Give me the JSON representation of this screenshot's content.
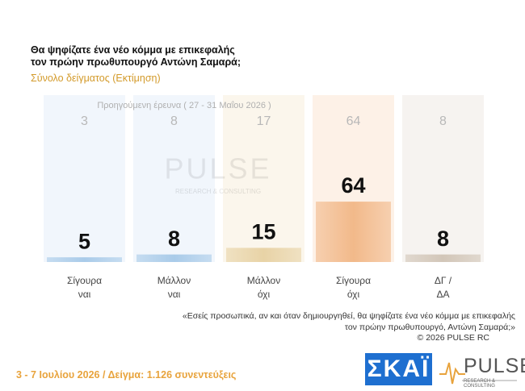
{
  "chart_data": {
    "type": "bar",
    "title": "Θα ψηφίζατε ένα νέο κόμμα με επικεφαλής\nτον πρώην πρωθυπουργό Αντώνη Σαμαρά;",
    "subtitle": "Σύνολο δείγματος (Εκτίμηση)",
    "previous_label": "Προηγούμενη έρευνα ( 27 - 31 Μαΐου 2026 )",
    "categories": [
      "Σίγουρα\nναι",
      "Μάλλον\nναι",
      "Μάλλον\nόχι",
      "Σίγουρα\nόχι",
      "ΔΓ /\nΔΑ"
    ],
    "values": [
      5,
      8,
      15,
      64,
      8
    ],
    "previous_values": [
      3,
      8,
      17,
      64,
      8
    ],
    "colors": [
      "#a9cbe9",
      "#a9cbe9",
      "#e8d3a6",
      "#f2b98a",
      "#d2c6b8"
    ],
    "column_colors": [
      "#f1f6fc",
      "#f1f6fc",
      "#fbf6ec",
      "#fdf1e7",
      "#f6f3f0"
    ],
    "note": "«Εσείς προσωπικά, αν και όταν δημιουργηθεί, θα ψηφίζατε ένα νέο κόμμα με επικεφαλής\nτον πρώην πρωθυπουργό, Αντώνη Σαμαρά;»",
    "copyright": "©  2026  PULSE RC",
    "footer": "3 - 7 Ιουλίου 2026  /  Δείγμα:  1.126 συνεντεύξεις",
    "watermark": "PULSE",
    "watermark_sub": "RESEARCH & CONSULTING",
    "logo_skai": "ΣΚΑΪ",
    "logo_pulse": "PULSE",
    "logo_pulse_sub": "RESEARCH & CONSULTING"
  }
}
